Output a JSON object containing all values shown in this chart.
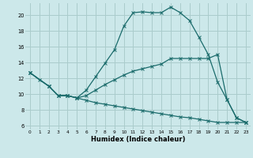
{
  "xlabel": "Humidex (Indice chaleur)",
  "bg_color": "#cce8ea",
  "grid_color": "#aacccc",
  "line_color": "#1a6b6b",
  "xlim": [
    -0.5,
    23.5
  ],
  "ylim": [
    5.5,
    21.5
  ],
  "yticks": [
    6,
    8,
    10,
    12,
    14,
    16,
    18,
    20
  ],
  "xticks": [
    0,
    1,
    2,
    3,
    4,
    5,
    6,
    7,
    8,
    9,
    10,
    11,
    12,
    13,
    14,
    15,
    16,
    17,
    18,
    19,
    20,
    21,
    22,
    23
  ],
  "curve1_x": [
    0,
    1,
    2,
    3,
    4,
    5,
    6,
    7,
    8,
    9,
    10,
    11,
    12,
    13,
    14,
    15,
    16,
    17,
    18,
    19,
    20,
    21,
    22,
    23
  ],
  "curve1_y": [
    12.7,
    11.8,
    11.0,
    9.8,
    9.8,
    9.5,
    10.5,
    12.2,
    13.9,
    15.6,
    18.6,
    20.3,
    20.4,
    20.3,
    20.3,
    21.0,
    20.3,
    19.3,
    17.2,
    15.0,
    11.5,
    9.3,
    7.0,
    6.4
  ],
  "curve2_x": [
    0,
    2,
    3,
    4,
    5,
    6,
    7,
    8,
    9,
    10,
    11,
    12,
    13,
    14,
    15,
    16,
    17,
    18,
    19,
    20,
    21,
    22,
    23
  ],
  "curve2_y": [
    12.7,
    11.0,
    9.8,
    9.8,
    9.5,
    9.8,
    10.5,
    11.2,
    11.8,
    12.4,
    12.9,
    13.2,
    13.5,
    13.8,
    14.5,
    14.5,
    14.5,
    14.5,
    14.5,
    15.0,
    9.3,
    7.0,
    6.4
  ],
  "curve3_x": [
    0,
    2,
    3,
    4,
    5,
    6,
    7,
    8,
    9,
    10,
    11,
    12,
    13,
    14,
    15,
    16,
    17,
    18,
    19,
    20,
    21,
    22,
    23
  ],
  "curve3_y": [
    12.7,
    11.0,
    9.8,
    9.8,
    9.5,
    9.2,
    8.9,
    8.7,
    8.5,
    8.3,
    8.1,
    7.9,
    7.7,
    7.5,
    7.3,
    7.1,
    7.0,
    6.8,
    6.6,
    6.4,
    6.4,
    6.4,
    6.4
  ]
}
